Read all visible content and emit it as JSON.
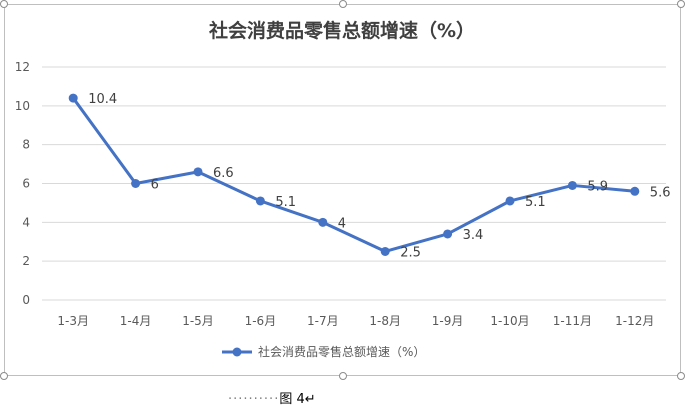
{
  "chart_data": {
    "type": "line",
    "title": "社会消费品零售总额增速（%）",
    "categories": [
      "1-3月",
      "1-4月",
      "1-5月",
      "1-6月",
      "1-7月",
      "1-8月",
      "1-9月",
      "1-10月",
      "1-11月",
      "1-12月"
    ],
    "series": [
      {
        "name": "社会消费品零售总额增速（%）",
        "values": [
          10.4,
          6,
          6.6,
          5.1,
          4,
          2.5,
          3.4,
          5.1,
          5.9,
          5.6
        ],
        "labels": [
          "10.4",
          "6",
          "6.6",
          "5.1",
          "4",
          "2.5",
          "3.4",
          "5.1",
          "5.9",
          "5.6"
        ],
        "color": "#4472c4"
      }
    ],
    "yticks": [
      "0",
      "2",
      "4",
      "6",
      "8",
      "10",
      "12"
    ],
    "ylim": [
      0,
      12
    ],
    "grid": true,
    "legend": "bottom"
  },
  "caption": {
    "dots": "··········",
    "text": "图 4↵"
  }
}
